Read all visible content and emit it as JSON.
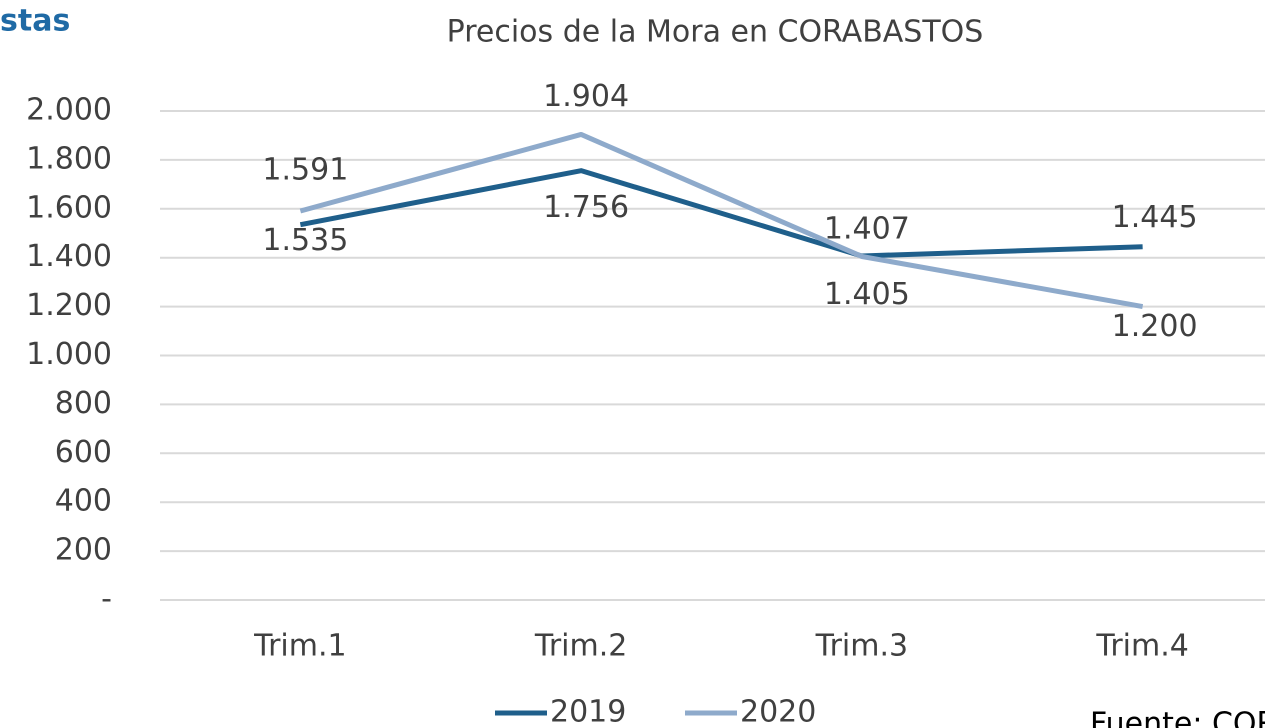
{
  "chart_data": {
    "type": "line",
    "title": "Precios de la Mora en CORABASTOS",
    "header_text": "stas",
    "source": "Fuente: COR",
    "categories": [
      "Trim.1",
      "Trim.2",
      "Trim.3",
      "Trim.4"
    ],
    "series": [
      {
        "name": "2019",
        "color": "#1f5f8b",
        "values": [
          1535,
          1756,
          1407,
          1445
        ],
        "value_labels": [
          "1.535",
          "1.756",
          "1.407",
          "1.445"
        ]
      },
      {
        "name": "2020",
        "color": "#8eaacb",
        "values": [
          1591,
          1904,
          1405,
          1200
        ],
        "value_labels": [
          "1.591",
          "1.904",
          "1.405",
          "1.200"
        ]
      }
    ],
    "ylim": [
      0,
      2000
    ],
    "yticks": [
      {
        "value": 0,
        "label": "-"
      },
      200,
      400,
      600,
      800,
      {
        "value": 1000,
        "label": "1.000"
      },
      {
        "value": 1200,
        "label": "1.200"
      },
      {
        "value": 1400,
        "label": "1.400"
      },
      {
        "value": 1600,
        "label": "1.600"
      },
      {
        "value": 1800,
        "label": "1.800"
      },
      {
        "value": 2000,
        "label": "2.000"
      }
    ],
    "grid": true,
    "legend": "bottom"
  }
}
